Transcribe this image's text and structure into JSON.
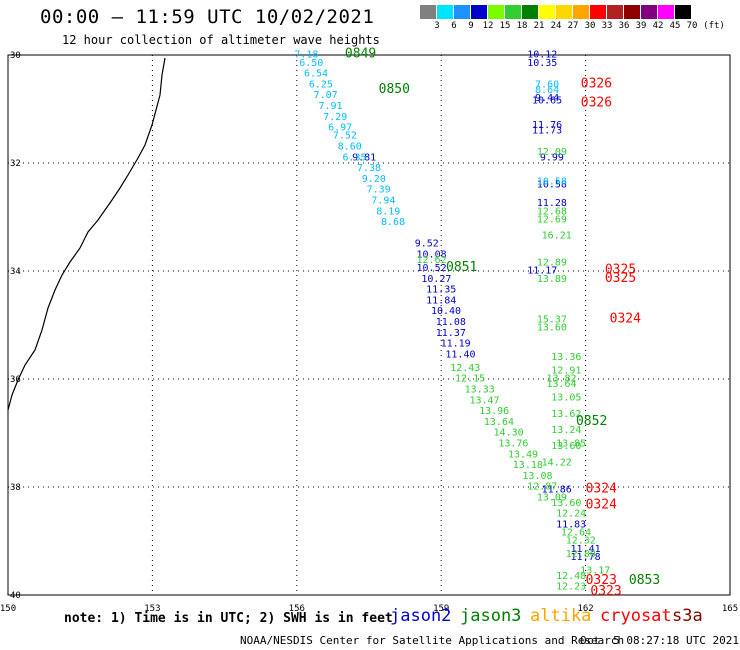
{
  "header": {
    "title": "00:00 – 11:59 UTC 10/02/2021",
    "subtitle": "12 hour collection of altimeter wave heights"
  },
  "legend": {
    "unit": "(ft)",
    "ticks": [
      "3",
      "6",
      "9",
      "12",
      "15",
      "18",
      "21",
      "24",
      "27",
      "30",
      "33",
      "36",
      "39",
      "42",
      "45",
      "70"
    ],
    "colors": [
      "#808080",
      "#00e5ff",
      "#1e90ff",
      "#0000cd",
      "#7cfc00",
      "#32cd32",
      "#008000",
      "#ffff00",
      "#ffd700",
      "#ffa500",
      "#ff0000",
      "#b22222",
      "#8b0000",
      "#800080",
      "#ff00ff",
      "#000000"
    ]
  },
  "axes": {
    "x_ticks": [
      "150",
      "153",
      "156",
      "159",
      "162",
      "165"
    ],
    "y_ticks": [
      "30",
      "32",
      "34",
      "36",
      "38",
      "40"
    ]
  },
  "chart_data": {
    "type": "scatter",
    "x_range": [
      150,
      165
    ],
    "y_range": [
      -30,
      -40
    ],
    "grid": true,
    "times": [
      {
        "label": "0849",
        "lon": 157.0,
        "lat": -30.05,
        "color": "#008000"
      },
      {
        "label": "0850",
        "lon": 157.7,
        "lat": -30.7,
        "color": "#008000"
      },
      {
        "label": "0851",
        "lon": 159.1,
        "lat": -34.0,
        "color": "#008000"
      },
      {
        "label": "0852",
        "lon": 161.8,
        "lat": -36.85,
        "color": "#008000"
      },
      {
        "label": "0853",
        "lon": 162.9,
        "lat": -39.8,
        "color": "#008000"
      },
      {
        "label": "0326",
        "lon": 161.9,
        "lat": -30.6,
        "color": "#ff0000"
      },
      {
        "label": "0326",
        "lon": 161.9,
        "lat": -30.95,
        "color": "#ff0000"
      },
      {
        "label": "0325",
        "lon": 162.4,
        "lat": -34.05,
        "color": "#ff0000"
      },
      {
        "label": "0325",
        "lon": 162.4,
        "lat": -34.2,
        "color": "#ff0000"
      },
      {
        "label": "0324",
        "lon": 162.5,
        "lat": -34.95,
        "color": "#ff0000"
      },
      {
        "label": "0324",
        "lon": 162.0,
        "lat": -38.1,
        "color": "#ff0000"
      },
      {
        "label": "0324",
        "lon": 162.0,
        "lat": -38.4,
        "color": "#ff0000"
      },
      {
        "label": "0323",
        "lon": 162.0,
        "lat": -39.8,
        "color": "#ff0000"
      },
      {
        "label": "0323",
        "lon": 162.1,
        "lat": -40.0,
        "color": "#ff0000"
      }
    ],
    "series": [
      {
        "name": "jason2",
        "color": "#0000cd",
        "points": [
          {
            "lon": 161.1,
            "lat": -30.05,
            "v": "10.12"
          },
          {
            "lon": 161.1,
            "lat": -30.2,
            "v": "10.35"
          },
          {
            "lon": 161.2,
            "lat": -30.85,
            "v": "9.44"
          },
          {
            "lon": 161.2,
            "lat": -30.9,
            "v": "10.65"
          },
          {
            "lon": 161.2,
            "lat": -31.35,
            "v": "11.76"
          },
          {
            "lon": 161.2,
            "lat": -31.45,
            "v": "11.73"
          },
          {
            "lon": 161.3,
            "lat": -31.95,
            "v": "9.99"
          },
          {
            "lon": 161.3,
            "lat": -32.45,
            "v": "10.58"
          },
          {
            "lon": 161.3,
            "lat": -32.8,
            "v": "11.28"
          },
          {
            "lon": 161.1,
            "lat": -34.05,
            "v": "11.17"
          },
          {
            "lon": 158.8,
            "lat": -34.0,
            "v": "10.52"
          },
          {
            "lon": 158.9,
            "lat": -34.2,
            "v": "10.27"
          },
          {
            "lon": 159.0,
            "lat": -34.4,
            "v": "11.35"
          },
          {
            "lon": 159.0,
            "lat": -34.6,
            "v": "11.84"
          },
          {
            "lon": 159.1,
            "lat": -34.8,
            "v": "10.40"
          },
          {
            "lon": 159.2,
            "lat": -35.0,
            "v": "11.08"
          },
          {
            "lon": 159.2,
            "lat": -35.2,
            "v": "11.37"
          },
          {
            "lon": 159.3,
            "lat": -35.4,
            "v": "11.19"
          },
          {
            "lon": 159.4,
            "lat": -35.6,
            "v": "11.40"
          },
          {
            "lon": 158.7,
            "lat": -33.55,
            "v": "9.52"
          },
          {
            "lon": 158.8,
            "lat": -33.75,
            "v": "10.08"
          },
          {
            "lon": 157.4,
            "lat": -31.95,
            "v": "9.81"
          },
          {
            "lon": 161.4,
            "lat": -38.1,
            "v": "11.86"
          },
          {
            "lon": 161.7,
            "lat": -38.75,
            "v": "11.83"
          },
          {
            "lon": 162.0,
            "lat": -39.2,
            "v": "11.41"
          },
          {
            "lon": 162.0,
            "lat": -39.35,
            "v": "11.78"
          }
        ]
      },
      {
        "name": "jason3",
        "color": "#32cd32",
        "points": [
          {
            "lon": 161.3,
            "lat": -31.85,
            "v": "12.09"
          },
          {
            "lon": 161.3,
            "lat": -32.95,
            "v": "12.68"
          },
          {
            "lon": 161.3,
            "lat": -33.1,
            "v": "12.69"
          },
          {
            "lon": 161.4,
            "lat": -33.4,
            "v": "16.21"
          },
          {
            "lon": 161.3,
            "lat": -33.9,
            "v": "12.89"
          },
          {
            "lon": 161.3,
            "lat": -34.2,
            "v": "13.89"
          },
          {
            "lon": 161.3,
            "lat": -34.95,
            "v": "15.37"
          },
          {
            "lon": 161.3,
            "lat": -35.1,
            "v": "13.60"
          },
          {
            "lon": 161.6,
            "lat": -35.65,
            "v": "13.36"
          },
          {
            "lon": 161.6,
            "lat": -35.9,
            "v": "12.91"
          },
          {
            "lon": 161.5,
            "lat": -36.05,
            "v": "13.82"
          },
          {
            "lon": 161.5,
            "lat": -36.15,
            "v": "13.64"
          },
          {
            "lon": 161.6,
            "lat": -36.4,
            "v": "13.05"
          },
          {
            "lon": 161.6,
            "lat": -36.7,
            "v": "13.62"
          },
          {
            "lon": 161.6,
            "lat": -37.0,
            "v": "13.24"
          },
          {
            "lon": 161.7,
            "lat": -37.25,
            "v": "13.85"
          },
          {
            "lon": 161.6,
            "lat": -37.3,
            "v": "13.60"
          },
          {
            "lon": 161.4,
            "lat": -37.6,
            "v": "14.22"
          },
          {
            "lon": 158.8,
            "lat": -33.85,
            "v": "12.62"
          },
          {
            "lon": 159.5,
            "lat": -35.85,
            "v": "12.43"
          },
          {
            "lon": 159.6,
            "lat": -36.05,
            "v": "12.15"
          },
          {
            "lon": 159.8,
            "lat": -36.25,
            "v": "13.33"
          },
          {
            "lon": 159.9,
            "lat": -36.45,
            "v": "13.47"
          },
          {
            "lon": 160.1,
            "lat": -36.65,
            "v": "13.96"
          },
          {
            "lon": 160.2,
            "lat": -36.85,
            "v": "13.64"
          },
          {
            "lon": 160.4,
            "lat": -37.05,
            "v": "14.30"
          },
          {
            "lon": 160.5,
            "lat": -37.25,
            "v": "13.76"
          },
          {
            "lon": 160.7,
            "lat": -37.45,
            "v": "13.49"
          },
          {
            "lon": 160.8,
            "lat": -37.65,
            "v": "13.18"
          },
          {
            "lon": 161.0,
            "lat": -37.85,
            "v": "13.08"
          },
          {
            "lon": 161.1,
            "lat": -38.05,
            "v": "12.87"
          },
          {
            "lon": 161.3,
            "lat": -38.25,
            "v": "13.09"
          },
          {
            "lon": 161.6,
            "lat": -38.35,
            "v": "13.60"
          },
          {
            "lon": 161.7,
            "lat": -38.55,
            "v": "12.24"
          },
          {
            "lon": 161.8,
            "lat": -38.9,
            "v": "12.64"
          },
          {
            "lon": 161.9,
            "lat": -39.05,
            "v": "12.32"
          },
          {
            "lon": 161.9,
            "lat": -39.3,
            "v": "12.80"
          },
          {
            "lon": 162.2,
            "lat": -39.6,
            "v": "13.17"
          },
          {
            "lon": 161.7,
            "lat": -39.7,
            "v": "12.48"
          },
          {
            "lon": 161.7,
            "lat": -39.9,
            "v": "12.23"
          }
        ]
      },
      {
        "name": "jason3-cyan",
        "color": "#00bfff",
        "points": [
          {
            "lon": 156.2,
            "lat": -30.05,
            "v": "7.18"
          },
          {
            "lon": 156.3,
            "lat": -30.2,
            "v": "6.50"
          },
          {
            "lon": 156.4,
            "lat": -30.4,
            "v": "6.54"
          },
          {
            "lon": 156.5,
            "lat": -30.6,
            "v": "6.25"
          },
          {
            "lon": 156.6,
            "lat": -30.8,
            "v": "7.07"
          },
          {
            "lon": 156.7,
            "lat": -31.0,
            "v": "7.91"
          },
          {
            "lon": 156.8,
            "lat": -31.2,
            "v": "7.29"
          },
          {
            "lon": 156.9,
            "lat": -31.4,
            "v": "6.97"
          },
          {
            "lon": 157.0,
            "lat": -31.55,
            "v": "7.52"
          },
          {
            "lon": 157.1,
            "lat": -31.75,
            "v": "8.60"
          },
          {
            "lon": 157.2,
            "lat": -31.95,
            "v": "6.35"
          },
          {
            "lon": 157.5,
            "lat": -32.15,
            "v": "7.38"
          },
          {
            "lon": 157.6,
            "lat": -32.35,
            "v": "9.20"
          },
          {
            "lon": 157.7,
            "lat": -32.55,
            "v": "7.39"
          },
          {
            "lon": 157.8,
            "lat": -32.75,
            "v": "7.94"
          },
          {
            "lon": 157.9,
            "lat": -32.95,
            "v": "8.19"
          },
          {
            "lon": 158.0,
            "lat": -33.15,
            "v": "8.68"
          },
          {
            "lon": 161.2,
            "lat": -30.6,
            "v": "7.60"
          },
          {
            "lon": 161.2,
            "lat": -30.7,
            "v": "8.64"
          },
          {
            "lon": 161.3,
            "lat": -32.4,
            "v": "10.58"
          }
        ]
      }
    ]
  },
  "footer": {
    "note": "note: 1) Time is in UTC; 2) SWH is in feet",
    "sats": [
      {
        "label": "jason2",
        "color": "#0000cd"
      },
      {
        "label": "jason3",
        "color": "#008000"
      },
      {
        "label": "altika",
        "color": "#ffa500"
      },
      {
        "label": "cryosat",
        "color": "#ff0000"
      },
      {
        "label": "s3a",
        "color": "#8b0000"
      }
    ],
    "credit": "NOAA/NESDIS Center for Satellite Applications and Research",
    "timestamp": "Oct  5 08:27:18 UTC 2021"
  }
}
